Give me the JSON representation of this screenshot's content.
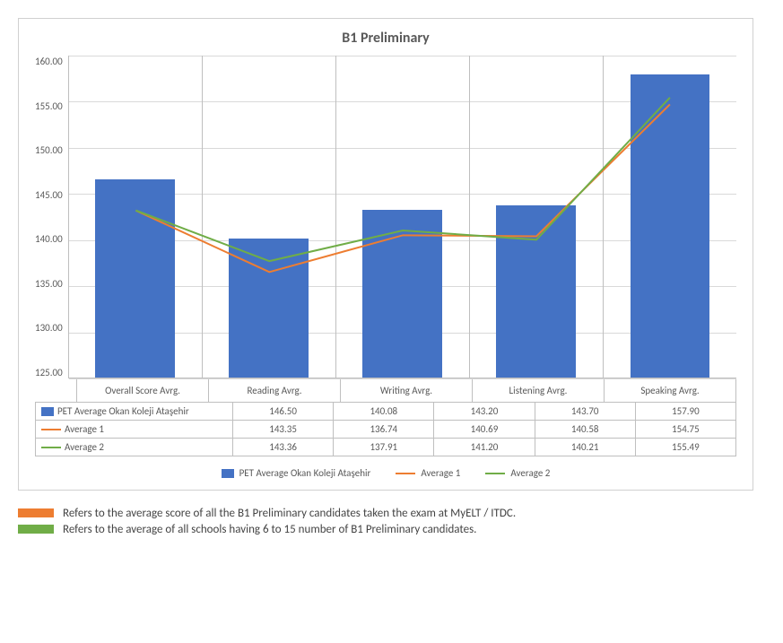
{
  "chart": {
    "type": "bar+line",
    "title": "B1 Preliminary",
    "title_fontsize": 16,
    "title_color": "#595959",
    "background_color": "#ffffff",
    "border_color": "#d0d0d0",
    "grid_color": "#d9d9d9",
    "axis_color": "#bfbfbf",
    "label_color": "#595959",
    "label_fontsize": 11,
    "ylim": [
      125.0,
      160.0
    ],
    "ytick_step": 5.0,
    "yticks": [
      "160.00",
      "155.00",
      "150.00",
      "145.00",
      "140.00",
      "135.00",
      "130.00",
      "125.00"
    ],
    "categories": [
      "Overall Score Avrg.",
      "Reading Avrg.",
      "Writing Avrg.",
      "Listening Avrg.",
      "Speaking Avrg."
    ],
    "series": [
      {
        "name": "PET Average Okan Koleji Ataşehir",
        "kind": "bar",
        "color": "#4472c4",
        "bar_width": 0.6,
        "values": [
          146.5,
          140.08,
          143.2,
          143.7,
          157.9
        ]
      },
      {
        "name": "Average 1",
        "kind": "line",
        "color": "#ed7d31",
        "line_width": 2,
        "values": [
          143.35,
          136.74,
          140.69,
          140.58,
          154.75
        ]
      },
      {
        "name": "Average 2",
        "kind": "line",
        "color": "#70ad47",
        "line_width": 2,
        "values": [
          143.36,
          137.91,
          141.2,
          140.21,
          155.49
        ]
      }
    ],
    "data_table": {
      "rows": [
        {
          "label": "PET Average Okan Koleji Ataşehir",
          "swatch_kind": "bar",
          "swatch_color": "#4472c4",
          "cells": [
            "146.50",
            "140.08",
            "143.20",
            "143.70",
            "157.90"
          ]
        },
        {
          "label": "Average 1",
          "swatch_kind": "line",
          "swatch_color": "#ed7d31",
          "cells": [
            "143.35",
            "136.74",
            "140.69",
            "140.58",
            "154.75"
          ]
        },
        {
          "label": "Average 2",
          "swatch_kind": "line",
          "swatch_color": "#70ad47",
          "cells": [
            "143.36",
            "137.91",
            "141.20",
            "140.21",
            "155.49"
          ]
        }
      ]
    },
    "legend": [
      {
        "label": "PET Average Okan Koleji Ataşehir",
        "kind": "bar",
        "color": "#4472c4"
      },
      {
        "label": "Average 1",
        "kind": "line",
        "color": "#ed7d31"
      },
      {
        "label": "Average 2",
        "kind": "line",
        "color": "#70ad47"
      }
    ]
  },
  "notes": [
    {
      "color": "#ed7d31",
      "text": "Refers to the average score of all the B1 Preliminary candidates taken the exam at MyELT / ITDC."
    },
    {
      "color": "#70ad47",
      "text": "Refers to the average of all schools having 6 to 15 number of B1 Preliminary candidates."
    }
  ]
}
